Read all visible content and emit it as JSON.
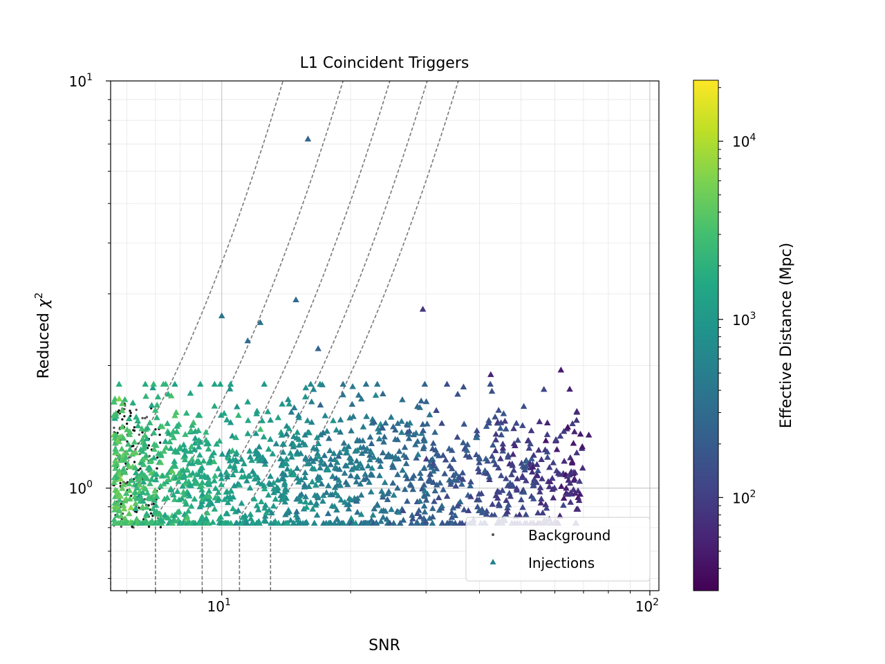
{
  "chart_data": {
    "type": "scatter",
    "title": "L1 Coincident Triggers",
    "xlabel": "SNR",
    "ylabel_prefix": "Reduced ",
    "ylabel_symbol": "χ",
    "ylabel_exp": "2",
    "xscale": "log",
    "yscale": "log",
    "xlim": [
      5.5,
      105
    ],
    "ylim": [
      0.56,
      10
    ],
    "grid": true,
    "x_ticks": [
      {
        "base": "10",
        "exp": "1",
        "value": 10
      },
      {
        "base": "10",
        "exp": "2",
        "value": 100
      }
    ],
    "y_ticks": [
      {
        "base": "10",
        "exp": "0",
        "value": 1
      },
      {
        "base": "10",
        "exp": "1",
        "value": 10
      }
    ],
    "legend": {
      "position": "lower-right",
      "entries": [
        {
          "label": "Background",
          "marker": "dot",
          "color": "#555555"
        },
        {
          "label": "Injections",
          "marker": "triangle",
          "color": "#26828e"
        }
      ]
    },
    "colorbar": {
      "label": "Effective Distance (Mpc)",
      "scale": "log",
      "range": [
        30,
        22000
      ],
      "colormap": "viridis",
      "ticks": [
        {
          "base": "10",
          "exp": "2",
          "value": 100
        },
        {
          "base": "10",
          "exp": "3",
          "value": 1000
        },
        {
          "base": "10",
          "exp": "4",
          "value": 10000
        }
      ]
    },
    "threshold_curves": [
      {
        "snr_vertical": 5.5,
        "chi2_at_base": 1.0,
        "x_top": 13.9
      },
      {
        "snr_vertical": 7.0,
        "chi2_at_base": 0.85,
        "x_top": 19.2
      },
      {
        "snr_vertical": 9.0,
        "chi2_at_base": 0.85,
        "x_top": 24.7
      },
      {
        "snr_vertical": 11.0,
        "chi2_at_base": 0.85,
        "x_top": 30.2
      },
      {
        "snr_vertical": 13.0,
        "chi2_at_base": 0.85,
        "x_top": 35.7
      }
    ],
    "highlighted_injections": [
      {
        "snr": 15.9,
        "chi2": 7.2,
        "distance": 250
      },
      {
        "snr": 14.9,
        "chi2": 2.9,
        "distance": 300
      },
      {
        "snr": 10.0,
        "chi2": 2.65,
        "distance": 400
      },
      {
        "snr": 12.3,
        "chi2": 2.55,
        "distance": 350
      },
      {
        "snr": 29.5,
        "chi2": 2.75,
        "distance": 80
      },
      {
        "snr": 11.5,
        "chi2": 2.3,
        "distance": 300
      },
      {
        "snr": 16.8,
        "chi2": 2.2,
        "distance": 250
      },
      {
        "snr": 62.0,
        "chi2": 1.95,
        "distance": 50
      },
      {
        "snr": 42.5,
        "chi2": 1.9,
        "distance": 60
      },
      {
        "snr": 72.0,
        "chi2": 1.35,
        "distance": 50
      },
      {
        "snr": 65.0,
        "chi2": 1.75,
        "distance": 55
      },
      {
        "snr": 26.5,
        "chi2": 0.88,
        "distance": 120
      },
      {
        "snr": 17.0,
        "chi2": 1.6,
        "distance": 250
      }
    ],
    "injection_cloud": {
      "count": 1500,
      "snr_range": [
        5.6,
        70
      ],
      "chi2_center": 1.05,
      "distance_range": [
        60,
        3500
      ]
    },
    "background_cloud": {
      "count": 160,
      "snr_range": [
        5.6,
        7.2
      ],
      "chi2_range": [
        0.8,
        1.65
      ]
    }
  }
}
